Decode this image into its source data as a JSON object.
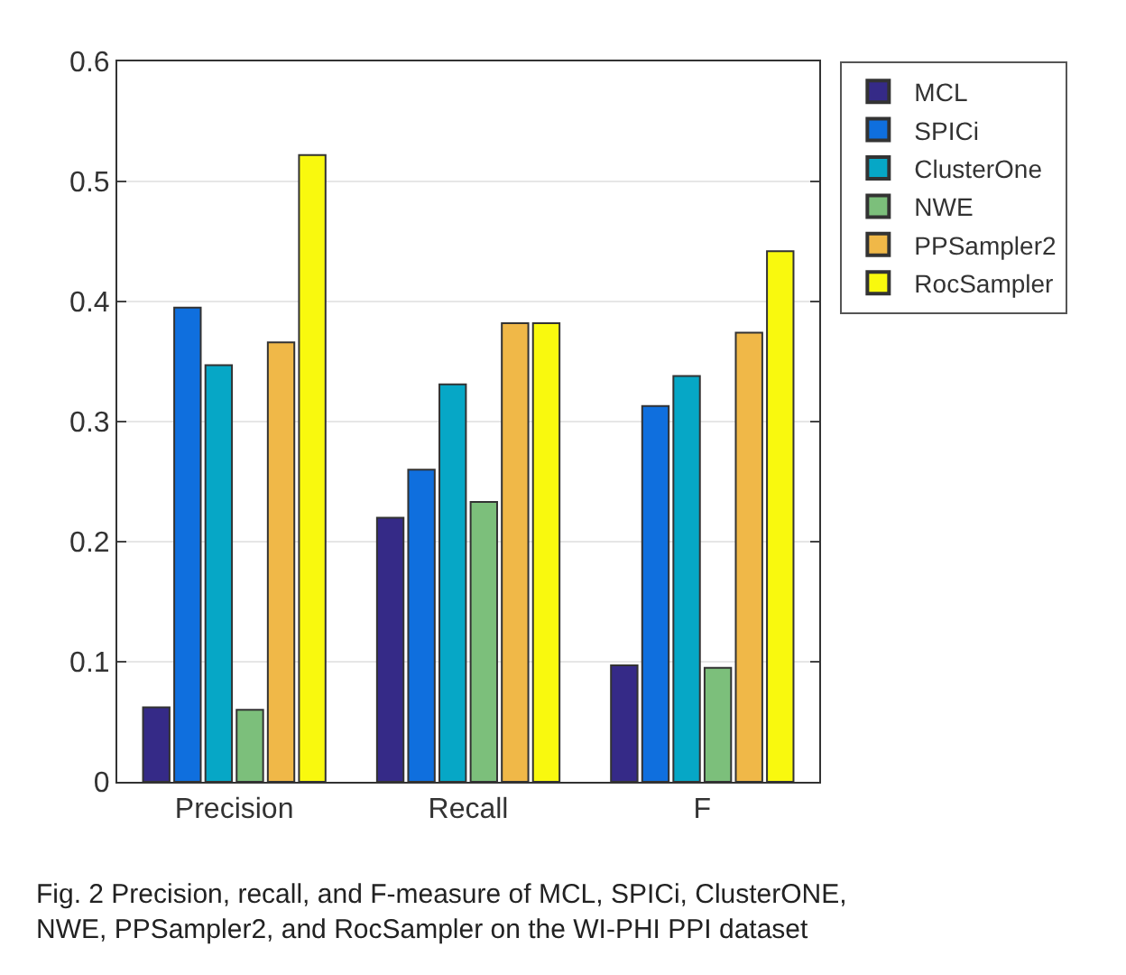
{
  "chart_data": {
    "type": "bar",
    "categories": [
      "Precision",
      "Recall",
      "F"
    ],
    "series": [
      {
        "name": "MCL",
        "color": "#352a87",
        "values": [
          0.062,
          0.22,
          0.097
        ]
      },
      {
        "name": "SPICi",
        "color": "#0f6fde",
        "values": [
          0.395,
          0.26,
          0.313
        ]
      },
      {
        "name": "ClusterOne",
        "color": "#06a7c6",
        "values": [
          0.347,
          0.331,
          0.338
        ]
      },
      {
        "name": "NWE",
        "color": "#7cbf7b",
        "values": [
          0.06,
          0.233,
          0.095
        ]
      },
      {
        "name": "PPSampler2",
        "color": "#f0b848",
        "values": [
          0.366,
          0.382,
          0.374
        ]
      },
      {
        "name": "RocSampler",
        "color": "#f9f90e",
        "values": [
          0.522,
          0.382,
          0.442
        ]
      }
    ],
    "ylim": [
      0,
      0.6
    ],
    "yticks": [
      0,
      0.1,
      0.2,
      0.3,
      0.4,
      0.5,
      0.6
    ],
    "grid": "y",
    "legend": "top right",
    "annotations": [
      "Fig. 2 Precision, recall, and F-measure of MCL, SPICi, ClusterONE, NWE, PPSampler2, and RocSampler on the WI-PHI PPI dataset"
    ]
  }
}
